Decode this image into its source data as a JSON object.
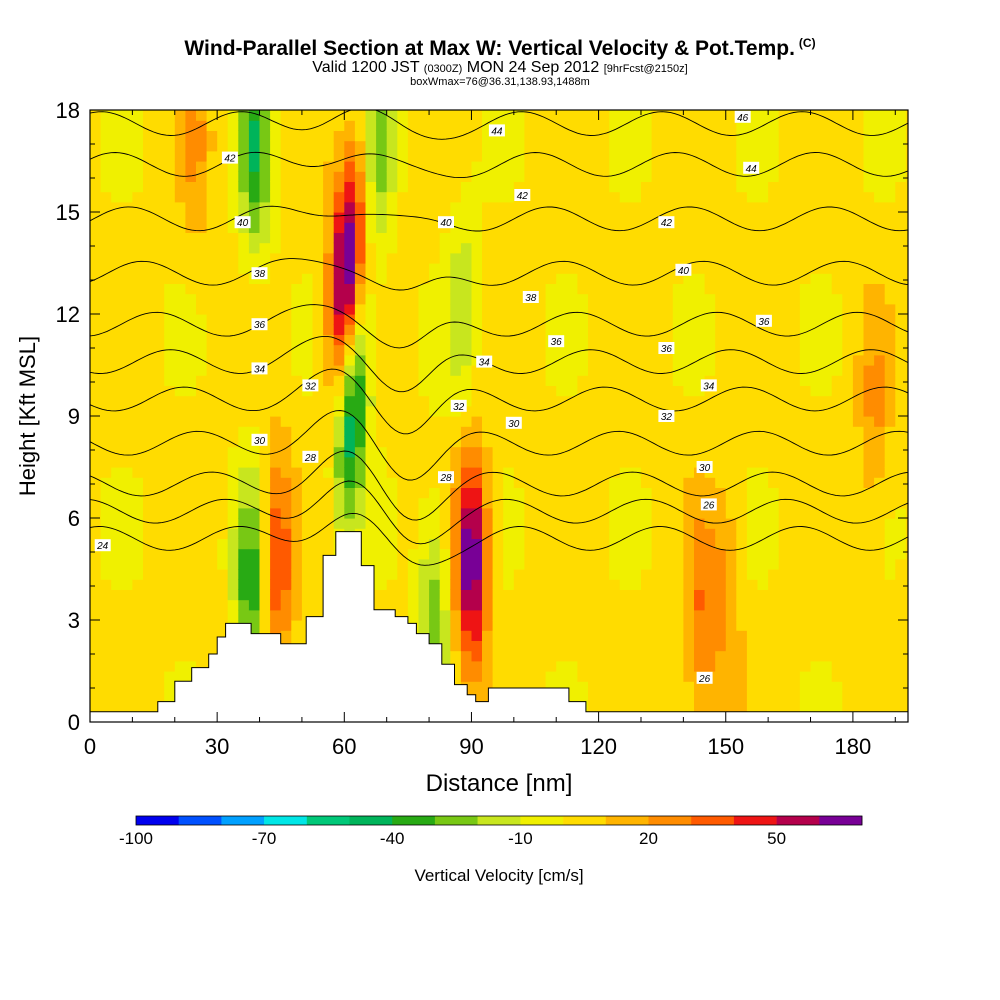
{
  "title": {
    "main": "Wind-Parallel Section at Max W: Vertical Velocity & Pot.Temp.",
    "mark": "(C)",
    "valid_prefix": "Valid 1200 JST",
    "valid_utc": "(0300Z)",
    "valid_date": "MON 24 Sep 2012",
    "forecast": "[9hrFcst@2150z]",
    "box_info": "boxWmax=76@36.31,138.93,1488m"
  },
  "chart_data": {
    "type": "heatmap",
    "xlabel": "Distance [nm]",
    "ylabel": "Height [Kft MSL]",
    "xlim": [
      0,
      193
    ],
    "ylim": [
      0,
      18
    ],
    "x_ticks": [
      0,
      30,
      60,
      90,
      120,
      150,
      180
    ],
    "y_ticks": [
      0,
      3,
      6,
      9,
      12,
      15,
      18
    ],
    "colorbar": {
      "label": "Vertical Velocity [cm/s]",
      "bins": [
        -100,
        -90,
        -80,
        -70,
        -60,
        -50,
        -40,
        -30,
        -20,
        -10,
        0,
        10,
        20,
        30,
        40,
        50,
        60,
        70
      ],
      "tick_labels": [
        -100,
        -70,
        -40,
        -10,
        20,
        50
      ],
      "colors": [
        "#0000ee",
        "#0050ff",
        "#00a0ff",
        "#00e6e6",
        "#00c878",
        "#00b45a",
        "#28aa14",
        "#78c814",
        "#c8e61e",
        "#f0f000",
        "#ffdc00",
        "#ffb400",
        "#ff8c00",
        "#ff5a00",
        "#ee1414",
        "#b4004b",
        "#780096"
      ]
    },
    "terrain_kft": [
      [
        0,
        0.3
      ],
      [
        16,
        0.3
      ],
      [
        16,
        0.6
      ],
      [
        20,
        0.6
      ],
      [
        20,
        1.2
      ],
      [
        24,
        1.2
      ],
      [
        24,
        1.6
      ],
      [
        28,
        1.6
      ],
      [
        28,
        2.0
      ],
      [
        30,
        2.0
      ],
      [
        30,
        2.5
      ],
      [
        32,
        2.5
      ],
      [
        32,
        2.9
      ],
      [
        38,
        2.9
      ],
      [
        38,
        2.6
      ],
      [
        45,
        2.6
      ],
      [
        45,
        2.3
      ],
      [
        51,
        2.3
      ],
      [
        51,
        3.1
      ],
      [
        55,
        3.1
      ],
      [
        55,
        4.9
      ],
      [
        58,
        4.9
      ],
      [
        58,
        5.6
      ],
      [
        64,
        5.6
      ],
      [
        64,
        4.6
      ],
      [
        67,
        4.6
      ],
      [
        67,
        3.3
      ],
      [
        72,
        3.3
      ],
      [
        72,
        3.1
      ],
      [
        75,
        3.1
      ],
      [
        75,
        2.9
      ],
      [
        77,
        2.9
      ],
      [
        77,
        2.6
      ],
      [
        80,
        2.6
      ],
      [
        80,
        2.3
      ],
      [
        83,
        2.3
      ],
      [
        83,
        1.7
      ],
      [
        86,
        1.7
      ],
      [
        86,
        1.1
      ],
      [
        89,
        1.1
      ],
      [
        89,
        0.8
      ],
      [
        91,
        0.8
      ],
      [
        91,
        0.6
      ],
      [
        94,
        0.6
      ],
      [
        94,
        1.0
      ],
      [
        113,
        1.0
      ],
      [
        113,
        0.6
      ],
      [
        117,
        0.6
      ],
      [
        117,
        0.3
      ],
      [
        193,
        0.3
      ]
    ],
    "w_features": [
      {
        "x": 60.5,
        "z": 13.5,
        "w": 70
      },
      {
        "x": 62,
        "z": 9,
        "w": -50
      },
      {
        "x": 90,
        "z": 4.8,
        "w": 68
      },
      {
        "x": 44,
        "z": 4.8,
        "w": 40
      },
      {
        "x": 38,
        "z": 4.0,
        "w": -40
      },
      {
        "x": 39,
        "z": 17,
        "w": -40
      },
      {
        "x": 68,
        "z": 17,
        "w": -25
      },
      {
        "x": 81,
        "z": 3.2,
        "w": -30
      },
      {
        "x": 88,
        "z": 12,
        "w": -20
      },
      {
        "x": 144,
        "z": 3,
        "w": 25
      },
      {
        "x": 150,
        "z": 3.5,
        "w": 18
      },
      {
        "x": 185,
        "z": 9,
        "w": 18
      },
      {
        "x": 25,
        "z": 17,
        "w": 15
      }
    ],
    "theta_contours": [
      {
        "value": 24,
        "base_kft": 5.4
      },
      {
        "value": 26,
        "base_kft": 6.2
      },
      {
        "value": 28,
        "base_kft": 7.0
      },
      {
        "value": 30,
        "base_kft": 8.2
      },
      {
        "value": 32,
        "base_kft": 9.5
      },
      {
        "value": 34,
        "base_kft": 10.6
      },
      {
        "value": 36,
        "base_kft": 11.7
      },
      {
        "value": 38,
        "base_kft": 13.2
      },
      {
        "value": 40,
        "base_kft": 14.8
      },
      {
        "value": 42,
        "base_kft": 16.4
      },
      {
        "value": 44,
        "base_kft": 17.6
      }
    ],
    "contour_labels": [
      {
        "text": "24",
        "x": 3,
        "z": 5.2
      },
      {
        "text": "26",
        "x": 146,
        "z": 6.4
      },
      {
        "text": "26",
        "x": 145,
        "z": 1.3
      },
      {
        "text": "28",
        "x": 52,
        "z": 7.8
      },
      {
        "text": "28",
        "x": 84,
        "z": 7.2
      },
      {
        "text": "30",
        "x": 40,
        "z": 8.3
      },
      {
        "text": "30",
        "x": 100,
        "z": 8.8
      },
      {
        "text": "30",
        "x": 145,
        "z": 7.5
      },
      {
        "text": "32",
        "x": 52,
        "z": 9.9
      },
      {
        "text": "32",
        "x": 87,
        "z": 9.3
      },
      {
        "text": "32",
        "x": 136,
        "z": 9.0
      },
      {
        "text": "34",
        "x": 40,
        "z": 10.4
      },
      {
        "text": "34",
        "x": 93,
        "z": 10.6
      },
      {
        "text": "34",
        "x": 146,
        "z": 9.9
      },
      {
        "text": "36",
        "x": 40,
        "z": 11.7
      },
      {
        "text": "36",
        "x": 110,
        "z": 11.2
      },
      {
        "text": "36",
        "x": 136,
        "z": 11.0
      },
      {
        "text": "36",
        "x": 159,
        "z": 11.8
      },
      {
        "text": "38",
        "x": 40,
        "z": 13.2
      },
      {
        "text": "38",
        "x": 104,
        "z": 12.5
      },
      {
        "text": "40",
        "x": 36,
        "z": 14.7
      },
      {
        "text": "40",
        "x": 84,
        "z": 14.7
      },
      {
        "text": "40",
        "x": 140,
        "z": 13.3
      },
      {
        "text": "42",
        "x": 33,
        "z": 16.6
      },
      {
        "text": "42",
        "x": 102,
        "z": 15.5
      },
      {
        "text": "42",
        "x": 136,
        "z": 14.7
      },
      {
        "text": "44",
        "x": 96,
        "z": 17.4
      },
      {
        "text": "44",
        "x": 156,
        "z": 16.3
      },
      {
        "text": "46",
        "x": 154,
        "z": 17.8
      }
    ]
  }
}
